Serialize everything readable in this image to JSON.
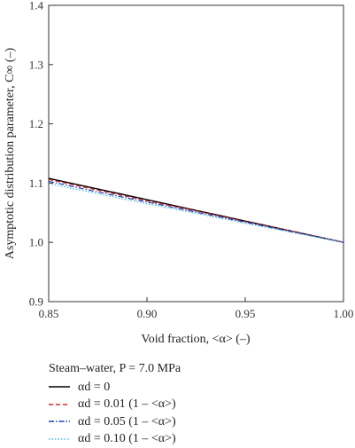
{
  "chart_data": {
    "type": "line",
    "title": "",
    "xlabel": "Void fraction, <α> (–)",
    "ylabel": "Asymptotic distribution parameter, C∞ (–)",
    "xlim": [
      0.85,
      1.0
    ],
    "ylim": [
      0.9,
      1.4
    ],
    "x_ticks": [
      "0.85",
      "0.90",
      "0.95",
      "1.00"
    ],
    "y_ticks": [
      "0.9",
      "1.0",
      "1.1",
      "1.2",
      "1.3",
      "1.4"
    ],
    "x_tick_values": [
      0.85,
      0.9,
      0.95,
      1.0
    ],
    "y_tick_values": [
      0.9,
      1.0,
      1.1,
      1.2,
      1.3,
      1.4
    ],
    "grid": false,
    "legend_position": "below",
    "legend_title": "Steam–water, P = 7.0 MPa",
    "x": [
      0.85,
      0.875,
      0.9,
      0.925,
      0.95,
      0.975,
      1.0
    ],
    "series": [
      {
        "name": "αd = 0",
        "color": "#000000",
        "dash": "solid",
        "values": [
          1.108,
          1.09,
          1.072,
          1.054,
          1.036,
          1.018,
          1.0
        ]
      },
      {
        "name": "αd = 0.01 (1 – <α>)",
        "color": "#d62728",
        "dash": "dashed",
        "values": [
          1.106,
          1.088,
          1.07,
          1.053,
          1.035,
          1.018,
          1.0
        ]
      },
      {
        "name": "αd = 0.05 (1 – <α>)",
        "color": "#1f3fbf",
        "dash": "dashdot",
        "values": [
          1.103,
          1.085,
          1.068,
          1.051,
          1.034,
          1.017,
          1.0
        ]
      },
      {
        "name": "αd = 0.10 (1 – <α>)",
        "color": "#3fbfdf",
        "dash": "dotted",
        "values": [
          1.099,
          1.082,
          1.065,
          1.049,
          1.032,
          1.016,
          1.0
        ]
      }
    ]
  }
}
